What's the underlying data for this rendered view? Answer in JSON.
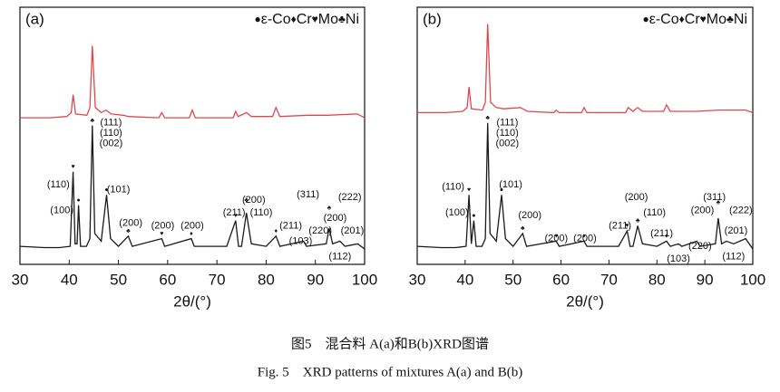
{
  "chart_data": [
    {
      "type": "line",
      "panel_label": "(a)",
      "xlabel": "2θ/(°)",
      "xlim": [
        30,
        100
      ],
      "xticks": [
        30,
        40,
        50,
        60,
        70,
        80,
        90,
        100
      ],
      "ylim": [
        0,
        100
      ],
      "legend": [
        {
          "symbol": "●",
          "label": "ε-Co"
        },
        {
          "symbol": "♦",
          "label": "Cr"
        },
        {
          "symbol": "♥",
          "label": "Mo"
        },
        {
          "symbol": "♣",
          "label": "Ni"
        }
      ],
      "series": [
        {
          "color": "#e0474c",
          "x": [
            30,
            36,
            39.5,
            40.4,
            40.8,
            41.3,
            43.6,
            44.2,
            44.7,
            45.3,
            46.5,
            47.5,
            48.5,
            51,
            52,
            58.2,
            58.8,
            59.4,
            64.4,
            65,
            65.6,
            73.3,
            73.8,
            74.3,
            76,
            77,
            81.3,
            82,
            82.8,
            88.5,
            92.5,
            98.5,
            100
          ],
          "values": [
            57,
            57,
            57.5,
            59,
            66,
            58.5,
            58,
            61,
            85,
            61,
            59,
            60,
            58.5,
            58,
            57.5,
            57,
            59,
            57,
            57,
            60,
            57,
            57,
            59.5,
            57.5,
            59,
            57.5,
            57.5,
            61,
            57.5,
            58,
            58,
            58.5,
            57
          ]
        },
        {
          "color": "#1a1a1a",
          "x": [
            30,
            35,
            38,
            40.2,
            40.8,
            41.2,
            41.6,
            41.9,
            42.3,
            43.5,
            44.2,
            44.7,
            45.2,
            46.5,
            47.6,
            48.4,
            50,
            52,
            52.8,
            58.8,
            59.4,
            64.8,
            65.4,
            72,
            73.8,
            74.4,
            75,
            76,
            77,
            80,
            82,
            82.8,
            87.6,
            88.2,
            92.2,
            92.8,
            93.5,
            95,
            96,
            98.6,
            100
          ],
          "values": [
            7,
            6.5,
            6.5,
            7,
            36,
            8,
            8,
            23,
            7,
            7,
            10,
            54,
            12,
            9,
            27,
            10,
            7,
            11,
            7,
            10,
            7,
            10,
            7,
            7,
            17,
            7,
            7,
            20,
            8,
            7,
            11,
            7,
            9,
            7,
            8,
            14,
            8,
            9,
            7,
            8,
            6
          ]
        }
      ],
      "annotations": [
        {
          "x": 37.8,
          "y": 31,
          "text": "(110)"
        },
        {
          "x": 38.5,
          "y": 21,
          "text": "(100)"
        },
        {
          "x": 48.5,
          "y": 55,
          "text": "(111)"
        },
        {
          "x": 48.5,
          "y": 51,
          "text": "(110)"
        },
        {
          "x": 48.5,
          "y": 47,
          "text": "(002)"
        },
        {
          "x": 50,
          "y": 29,
          "text": "(101)"
        },
        {
          "x": 52.5,
          "y": 16,
          "text": "(200)"
        },
        {
          "x": 59,
          "y": 15,
          "text": "(200)"
        },
        {
          "x": 65,
          "y": 15,
          "text": "(200)"
        },
        {
          "x": 73.5,
          "y": 20,
          "text": "(211)"
        },
        {
          "x": 77.5,
          "y": 25,
          "text": "(200)"
        },
        {
          "x": 79,
          "y": 20,
          "text": "(110)"
        },
        {
          "x": 85,
          "y": 15,
          "text": "(211)"
        },
        {
          "x": 87,
          "y": 9,
          "text": "(103)"
        },
        {
          "x": 88.5,
          "y": 27,
          "text": "(311)"
        },
        {
          "x": 97,
          "y": 26,
          "text": "(222)"
        },
        {
          "x": 91,
          "y": 13,
          "text": "(220)"
        },
        {
          "x": 94,
          "y": 18,
          "text": "(200)"
        },
        {
          "x": 97.5,
          "y": 13,
          "text": "(201)"
        },
        {
          "x": 95,
          "y": 3,
          "text": "(112)"
        }
      ],
      "markers": [
        {
          "x": 40.8,
          "y": 38,
          "symbol": "♥"
        },
        {
          "x": 41.9,
          "y": 25,
          "symbol": "●"
        },
        {
          "x": 44.7,
          "y": 56,
          "symbol": "♣"
        },
        {
          "x": 47.6,
          "y": 29,
          "symbol": "●"
        },
        {
          "x": 52,
          "y": 13,
          "symbol": "♣"
        },
        {
          "x": 58.8,
          "y": 12,
          "symbol": "♥"
        },
        {
          "x": 64.8,
          "y": 12,
          "symbol": "♦"
        },
        {
          "x": 73.8,
          "y": 19,
          "symbol": "♥"
        },
        {
          "x": 76,
          "y": 25,
          "symbol": "♣"
        },
        {
          "x": 82,
          "y": 13,
          "symbol": "♦"
        },
        {
          "x": 92.8,
          "y": 22,
          "symbol": "♣"
        }
      ]
    },
    {
      "type": "line",
      "panel_label": "(b)",
      "xlabel": "2θ/(°)",
      "xlim": [
        30,
        100
      ],
      "xticks": [
        30,
        40,
        50,
        60,
        70,
        80,
        90,
        100
      ],
      "ylim": [
        0,
        100
      ],
      "legend": [
        {
          "symbol": "●",
          "label": "ε-Co"
        },
        {
          "symbol": "♦",
          "label": "Cr"
        },
        {
          "symbol": "♥",
          "label": "Mo"
        },
        {
          "symbol": "♣",
          "label": "Ni"
        }
      ],
      "series": [
        {
          "color": "#e0474c",
          "x": [
            30,
            36,
            39.5,
            40.4,
            40.8,
            41.3,
            43.6,
            44.2,
            44.7,
            45.3,
            46.5,
            48,
            51.5,
            53,
            58.5,
            59,
            59.6,
            64.3,
            64.8,
            65.4,
            73.5,
            74,
            75,
            76,
            77,
            81.4,
            82,
            82.8,
            88,
            93,
            98.5,
            100
          ],
          "values": [
            59,
            59,
            59.5,
            61,
            69,
            60.5,
            60,
            63,
            93.5,
            63,
            61,
            60.5,
            61,
            59.5,
            59,
            60,
            59,
            59,
            61,
            59,
            59,
            61,
            59.5,
            61,
            59.5,
            59.5,
            62,
            59.5,
            59.5,
            60,
            60,
            59
          ]
        },
        {
          "color": "#1a1a1a",
          "x": [
            30,
            35,
            38,
            40.2,
            40.8,
            41.3,
            41.8,
            42.3,
            43.5,
            44.2,
            44.7,
            45.2,
            46.5,
            47.6,
            48.4,
            50,
            52,
            52.8,
            59,
            59.6,
            64.8,
            65.4,
            72,
            73.8,
            74.4,
            75,
            76,
            77,
            80,
            82,
            82.8,
            84.5,
            85.2,
            88.3,
            89,
            92.2,
            92.8,
            93.5,
            94.5,
            96,
            98.5,
            100
          ],
          "values": [
            7,
            6.5,
            6.5,
            7,
            27,
            8,
            17,
            7,
            7,
            10,
            55,
            12,
            9,
            27,
            10,
            7,
            12,
            7,
            9,
            7,
            9,
            7,
            7,
            13,
            7,
            7,
            15,
            8,
            7,
            9,
            7,
            8,
            7,
            9,
            7,
            8,
            18,
            8,
            9,
            8,
            10,
            6
          ]
        }
      ],
      "annotations": [
        {
          "x": 37.5,
          "y": 30,
          "text": "(110)"
        },
        {
          "x": 38.3,
          "y": 20,
          "text": "(100)"
        },
        {
          "x": 48.8,
          "y": 55,
          "text": "(111)"
        },
        {
          "x": 48.8,
          "y": 51,
          "text": "(110)"
        },
        {
          "x": 48.8,
          "y": 47,
          "text": "(002)"
        },
        {
          "x": 49.5,
          "y": 31,
          "text": "(101)"
        },
        {
          "x": 53.5,
          "y": 19,
          "text": "(200)"
        },
        {
          "x": 59,
          "y": 10,
          "text": "(200)"
        },
        {
          "x": 65,
          "y": 10,
          "text": "(200)"
        },
        {
          "x": 72.3,
          "y": 15,
          "text": "(211)"
        },
        {
          "x": 75.7,
          "y": 26,
          "text": "(200)"
        },
        {
          "x": 79.5,
          "y": 20,
          "text": "(110)"
        },
        {
          "x": 81,
          "y": 12,
          "text": "(211)"
        },
        {
          "x": 84.5,
          "y": 2,
          "text": "(103)"
        },
        {
          "x": 92,
          "y": 26,
          "text": "(311)"
        },
        {
          "x": 89.5,
          "y": 21,
          "text": "(200)"
        },
        {
          "x": 97.5,
          "y": 21,
          "text": "(222)"
        },
        {
          "x": 96.5,
          "y": 13,
          "text": "(201)"
        },
        {
          "x": 89,
          "y": 7,
          "text": "(220)"
        },
        {
          "x": 96,
          "y": 3,
          "text": "(112)"
        }
      ],
      "markers": [
        {
          "x": 40.8,
          "y": 29,
          "symbol": "♥"
        },
        {
          "x": 41.8,
          "y": 19,
          "symbol": "●"
        },
        {
          "x": 44.7,
          "y": 57,
          "symbol": "♣"
        },
        {
          "x": 47.6,
          "y": 29,
          "symbol": "●"
        },
        {
          "x": 52,
          "y": 14,
          "symbol": "♣"
        },
        {
          "x": 59,
          "y": 11,
          "symbol": "♥"
        },
        {
          "x": 64.8,
          "y": 11,
          "symbol": "♦"
        },
        {
          "x": 73.8,
          "y": 15,
          "symbol": "♥"
        },
        {
          "x": 76,
          "y": 17,
          "symbol": "♣"
        },
        {
          "x": 82,
          "y": 11,
          "symbol": "♦"
        },
        {
          "x": 92.8,
          "y": 24,
          "symbol": "♣"
        }
      ]
    }
  ],
  "caption": {
    "zh": "图5　混合料 A(a)和B(b)XRD图谱",
    "en": "Fig. 5　XRD patterns of mixtures A(a) and B(b)"
  }
}
